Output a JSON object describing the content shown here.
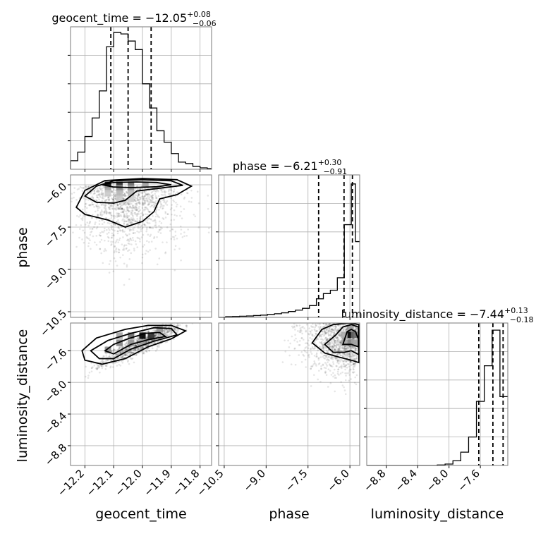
{
  "chart_data": {
    "type": "corner",
    "parameters": [
      {
        "name": "geocent_time",
        "xlabel": "geocent_time",
        "title": {
          "prefix": "geocent_time = ",
          "value": "−12.05",
          "plus": "+0.08",
          "minus": "−0.06"
        },
        "range": [
          -12.25,
          -11.76
        ],
        "ticks": [
          -12.2,
          -12.1,
          -12.0,
          -11.9,
          -11.8
        ],
        "tick_labels": [
          "−12.2",
          "−12.1",
          "−12.0",
          "−11.9",
          "−11.8"
        ],
        "quantiles": [
          -12.11,
          -12.05,
          -11.97
        ],
        "hist_edges": [
          -12.25,
          -12.225,
          -12.2,
          -12.175,
          -12.15,
          -12.125,
          -12.1,
          -12.075,
          -12.05,
          -12.025,
          -12.0,
          -11.975,
          -11.95,
          -11.925,
          -11.9,
          -11.875,
          -11.85,
          -11.825,
          -11.8,
          -11.775,
          -11.76
        ],
        "hist_counts": [
          6,
          12,
          23,
          36,
          55,
          86,
          96,
          95,
          90,
          84,
          60,
          43,
          27,
          19,
          11,
          5,
          4,
          2,
          1,
          0.5
        ],
        "hist_max": 100
      },
      {
        "name": "phase",
        "xlabel": "phase",
        "title": {
          "prefix": "phase = ",
          "value": "−6.21",
          "plus": "+0.30",
          "minus": "−0.91"
        },
        "range": [
          -10.7,
          -5.65
        ],
        "ticks": [
          -10.5,
          -9.0,
          -7.5,
          -6.0
        ],
        "tick_labels": [
          "−10.5",
          "−9.0",
          "−7.5",
          "−6.0"
        ],
        "quantiles": [
          -7.12,
          -6.21,
          -5.91
        ],
        "hist_edges": [
          -10.7,
          -10.45,
          -10.2,
          -9.95,
          -9.7,
          -9.45,
          -9.2,
          -8.95,
          -8.7,
          -8.45,
          -8.2,
          -7.95,
          -7.7,
          -7.45,
          -7.2,
          -6.95,
          -6.7,
          -6.45,
          -6.2,
          -5.95,
          -5.8,
          -5.65
        ],
        "hist_counts": [
          0,
          0.3,
          0.4,
          0.5,
          0.6,
          0.8,
          1.0,
          1.3,
          1.6,
          2.0,
          2.6,
          3.2,
          4.0,
          5.2,
          8.2,
          10.5,
          12.0,
          17.5,
          41.0,
          59.0,
          33.5
        ],
        "hist_max": 63
      },
      {
        "name": "luminosity_distance",
        "xlabel": "luminosity_distance",
        "title": {
          "prefix": "luminosity_distance = ",
          "value": "−7.44",
          "plus": "+0.13",
          "minus": "−0.18"
        },
        "range": [
          -9.05,
          -7.25
        ],
        "ticks": [
          -8.8,
          -8.4,
          -8.0,
          -7.6
        ],
        "tick_labels": [
          "−8.8",
          "−8.4",
          "−8.0",
          "−7.6"
        ],
        "quantiles": [
          -7.62,
          -7.44,
          -7.31
        ],
        "hist_edges": [
          -9.05,
          -8.95,
          -8.85,
          -8.75,
          -8.65,
          -8.55,
          -8.45,
          -8.35,
          -8.25,
          -8.15,
          -8.05,
          -7.95,
          -7.85,
          -7.75,
          -7.65,
          -7.55,
          -7.45,
          -7.35,
          -7.25
        ],
        "hist_counts": [
          0,
          0,
          0,
          0,
          0,
          0,
          0,
          0,
          0,
          0.1,
          0.3,
          1.0,
          2.8,
          6.0,
          13.5,
          21.0,
          28.5,
          14.5
        ],
        "hist_max": 30
      }
    ],
    "row_ranges": {
      "phase": [
        -10.7,
        -5.65
      ],
      "luminosity_distance": [
        -9.05,
        -7.25
      ]
    },
    "row_ticks": {
      "phase": [
        -10.5,
        -9.0,
        -7.5,
        -6.0
      ],
      "luminosity_distance": [
        -8.8,
        -8.4,
        -8.0,
        -7.6
      ]
    },
    "row_tick_labels": {
      "phase": [
        "−10.5",
        "−9.0",
        "−7.5",
        "−6.0"
      ],
      "luminosity_distance": [
        "−8.8",
        "−8.4",
        "−8.0",
        "−7.6"
      ]
    },
    "ylabels": [
      "phase",
      "luminosity_distance"
    ],
    "joint_distributions": [
      {
        "x": "geocent_time",
        "y": "phase",
        "peak": [
          -12.1,
          -6.0
        ],
        "density_cells": [
          [
            -12.12,
            -6.0,
            1.0
          ],
          [
            -12.08,
            -6.0,
            0.8
          ],
          [
            -12.04,
            -6.0,
            0.55
          ],
          [
            -12.04,
            -6.12,
            0.35
          ],
          [
            -12.08,
            -6.12,
            0.4
          ],
          [
            -11.99,
            -6.0,
            0.3
          ],
          [
            -12.12,
            -6.15,
            0.3
          ],
          [
            -12.08,
            -6.3,
            0.2
          ],
          [
            -12.04,
            -6.3,
            0.18
          ],
          [
            -12.08,
            -6.5,
            0.12
          ],
          [
            -12.04,
            -6.5,
            0.1
          ],
          [
            -12.12,
            -6.3,
            0.12
          ]
        ],
        "contours": [
          [
            [
              -12.14,
              -6.0
            ],
            [
              -12.1,
              -5.92
            ],
            [
              -12.02,
              -5.9
            ],
            [
              -11.95,
              -5.92
            ],
            [
              -11.9,
              -6.0
            ],
            [
              -11.95,
              -6.07
            ],
            [
              -12.04,
              -6.1
            ],
            [
              -12.1,
              -6.08
            ],
            [
              -12.14,
              -6.0
            ]
          ],
          [
            [
              -12.2,
              -6.4
            ],
            [
              -12.16,
              -6.05
            ],
            [
              -12.1,
              -5.86
            ],
            [
              -12.0,
              -5.82
            ],
            [
              -11.9,
              -5.86
            ],
            [
              -11.86,
              -6.02
            ],
            [
              -11.94,
              -6.12
            ],
            [
              -12.02,
              -6.22
            ],
            [
              -12.06,
              -6.55
            ],
            [
              -12.1,
              -6.65
            ],
            [
              -12.16,
              -6.62
            ],
            [
              -12.2,
              -6.4
            ]
          ],
          [
            [
              -12.23,
              -6.8
            ],
            [
              -12.2,
              -6.2
            ],
            [
              -12.13,
              -5.85
            ],
            [
              -12.0,
              -5.78
            ],
            [
              -11.88,
              -5.82
            ],
            [
              -11.83,
              -6.05
            ],
            [
              -11.88,
              -6.35
            ],
            [
              -11.94,
              -6.5
            ],
            [
              -11.96,
              -6.95
            ],
            [
              -12.0,
              -7.3
            ],
            [
              -12.06,
              -7.5
            ],
            [
              -12.12,
              -7.25
            ],
            [
              -12.2,
              -7.05
            ],
            [
              -12.23,
              -6.8
            ]
          ]
        ],
        "scatter": {
          "count": 1300,
          "center": [
            -12.05,
            -6.6
          ],
          "spread": [
            0.09,
            1.2
          ],
          "seed": 7
        }
      },
      {
        "x": "geocent_time",
        "y": "luminosity_distance",
        "peak": [
          -12.0,
          -7.4
        ],
        "density_cells": [
          [
            -12.0,
            -7.41,
            1.0
          ],
          [
            -11.97,
            -7.41,
            0.8
          ],
          [
            -12.04,
            -7.41,
            0.55
          ],
          [
            -12.08,
            -7.5,
            0.45
          ],
          [
            -12.12,
            -7.59,
            0.4
          ],
          [
            -11.94,
            -7.33,
            0.35
          ],
          [
            -12.0,
            -7.5,
            0.3
          ],
          [
            -12.08,
            -7.41,
            0.3
          ],
          [
            -12.04,
            -7.5,
            0.35
          ]
        ],
        "contours": [
          [
            [
              -12.13,
              -7.6
            ],
            [
              -12.1,
              -7.52
            ],
            [
              -12.05,
              -7.45
            ],
            [
              -11.99,
              -7.38
            ],
            [
              -11.94,
              -7.37
            ],
            [
              -11.92,
              -7.42
            ],
            [
              -11.98,
              -7.46
            ],
            [
              -12.04,
              -7.52
            ],
            [
              -12.1,
              -7.64
            ],
            [
              -12.13,
              -7.6
            ]
          ],
          [
            [
              -12.18,
              -7.6
            ],
            [
              -12.12,
              -7.47
            ],
            [
              -12.04,
              -7.38
            ],
            [
              -11.96,
              -7.31
            ],
            [
              -11.9,
              -7.32
            ],
            [
              -11.88,
              -7.4
            ],
            [
              -11.96,
              -7.48
            ],
            [
              -12.04,
              -7.58
            ],
            [
              -12.1,
              -7.7
            ],
            [
              -12.15,
              -7.7
            ],
            [
              -12.18,
              -7.6
            ]
          ],
          [
            [
              -12.21,
              -7.6
            ],
            [
              -12.16,
              -7.44
            ],
            [
              -12.06,
              -7.33
            ],
            [
              -11.98,
              -7.28
            ],
            [
              -11.9,
              -7.28
            ],
            [
              -11.85,
              -7.35
            ],
            [
              -11.9,
              -7.45
            ],
            [
              -11.98,
              -7.55
            ],
            [
              -12.06,
              -7.7
            ],
            [
              -12.14,
              -7.77
            ],
            [
              -12.2,
              -7.72
            ],
            [
              -12.21,
              -7.6
            ]
          ]
        ],
        "scatter": {
          "count": 1200,
          "center": [
            -12.0,
            -7.5
          ],
          "spread": [
            0.07,
            0.14
          ],
          "seed": 11
        }
      },
      {
        "x": "phase",
        "y": "luminosity_distance",
        "peak": [
          -5.98,
          -7.4
        ],
        "density_cells": [
          [
            -5.98,
            -7.4,
            1.0
          ],
          [
            -5.85,
            -7.4,
            0.55
          ],
          [
            -5.98,
            -7.5,
            0.45
          ],
          [
            -6.2,
            -7.5,
            0.3
          ],
          [
            -5.85,
            -7.5,
            0.3
          ],
          [
            -5.98,
            -7.32,
            0.3
          ],
          [
            -6.2,
            -7.4,
            0.25
          ]
        ],
        "contours": [
          [
            [
              -6.25,
              -7.52
            ],
            [
              -6.1,
              -7.36
            ],
            [
              -5.95,
              -7.33
            ],
            [
              -5.8,
              -7.36
            ],
            [
              -5.7,
              -7.45
            ],
            [
              -5.7,
              -7.55
            ],
            [
              -5.95,
              -7.52
            ],
            [
              -6.25,
              -7.52
            ]
          ],
          [
            [
              -6.9,
              -7.52
            ],
            [
              -6.5,
              -7.4
            ],
            [
              -6.25,
              -7.3
            ],
            [
              -5.95,
              -7.27
            ],
            [
              -5.7,
              -7.3
            ],
            [
              -5.68,
              -7.65
            ],
            [
              -5.95,
              -7.6
            ],
            [
              -6.2,
              -7.62
            ],
            [
              -6.6,
              -7.62
            ],
            [
              -6.9,
              -7.52
            ]
          ],
          [
            [
              -7.35,
              -7.5
            ],
            [
              -7.0,
              -7.33
            ],
            [
              -6.6,
              -7.27
            ],
            [
              -6.0,
              -7.25
            ],
            [
              -5.68,
              -7.27
            ],
            [
              -5.68,
              -7.75
            ],
            [
              -5.95,
              -7.72
            ],
            [
              -6.4,
              -7.68
            ],
            [
              -6.9,
              -7.63
            ],
            [
              -7.35,
              -7.5
            ]
          ]
        ],
        "scatter": {
          "count": 1500,
          "center": [
            -6.6,
            -7.45
          ],
          "spread": [
            1.1,
            0.22
          ],
          "seed": 23
        }
      }
    ]
  }
}
